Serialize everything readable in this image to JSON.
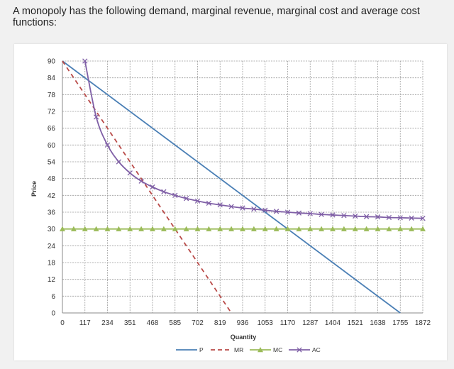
{
  "question_text": "A monopoly has the following demand, marginal revenue, marginal cost and average cost functions:",
  "chart_data": {
    "type": "line",
    "title": "",
    "xlabel": "Quantity",
    "ylabel": "Price",
    "xlim": [
      0,
      1872
    ],
    "ylim": [
      0,
      90
    ],
    "x_ticks": [
      0,
      117,
      234,
      351,
      468,
      585,
      702,
      819,
      936,
      1053,
      1170,
      1287,
      1404,
      1521,
      1638,
      1755,
      1872
    ],
    "y_ticks": [
      0,
      6,
      12,
      18,
      24,
      30,
      36,
      42,
      48,
      54,
      60,
      66,
      72,
      78,
      84,
      90
    ],
    "grid": true,
    "legend_position": "bottom",
    "series": [
      {
        "name": "P",
        "color": "#4a7fb5",
        "dash": "solid",
        "marker": "none",
        "points": [
          [
            0,
            90
          ],
          [
            1755,
            0
          ]
        ]
      },
      {
        "name": "MR",
        "color": "#b94a48",
        "dash": "dashed",
        "marker": "none",
        "points": [
          [
            0,
            90
          ],
          [
            877.5,
            0
          ]
        ]
      },
      {
        "name": "MC",
        "color": "#9bbb59",
        "dash": "solid",
        "marker": "triangle",
        "points": [
          [
            0,
            30
          ],
          [
            58.5,
            30
          ],
          [
            117,
            30
          ],
          [
            175.5,
            30
          ],
          [
            234,
            30
          ],
          [
            292.5,
            30
          ],
          [
            351,
            30
          ],
          [
            409.5,
            30
          ],
          [
            468,
            30
          ],
          [
            526.5,
            30
          ],
          [
            585,
            30
          ],
          [
            643.5,
            30
          ],
          [
            702,
            30
          ],
          [
            760.5,
            30
          ],
          [
            819,
            30
          ],
          [
            877.5,
            30
          ],
          [
            936,
            30
          ],
          [
            994.5,
            30
          ],
          [
            1053,
            30
          ],
          [
            1111.5,
            30
          ],
          [
            1170,
            30
          ],
          [
            1228.5,
            30
          ],
          [
            1287,
            30
          ],
          [
            1345.5,
            30
          ],
          [
            1404,
            30
          ],
          [
            1462.5,
            30
          ],
          [
            1521,
            30
          ],
          [
            1579.5,
            30
          ],
          [
            1638,
            30
          ],
          [
            1696.5,
            30
          ],
          [
            1755,
            30
          ],
          [
            1813.5,
            30
          ],
          [
            1872,
            30
          ]
        ]
      },
      {
        "name": "AC",
        "color": "#7f5fa6",
        "dash": "solid",
        "marker": "x",
        "points": [
          [
            117,
            90
          ],
          [
            175.5,
            70
          ],
          [
            234,
            60
          ],
          [
            292.5,
            54
          ],
          [
            351,
            50
          ],
          [
            409.5,
            47.1
          ],
          [
            468,
            45
          ],
          [
            526.5,
            43.3
          ],
          [
            585,
            42
          ],
          [
            643.5,
            40.9
          ],
          [
            702,
            40
          ],
          [
            760.5,
            39.2
          ],
          [
            819,
            38.6
          ],
          [
            877.5,
            38
          ],
          [
            936,
            37.5
          ],
          [
            994.5,
            37.1
          ],
          [
            1053,
            36.7
          ],
          [
            1111.5,
            36.3
          ],
          [
            1170,
            36
          ],
          [
            1228.5,
            35.7
          ],
          [
            1287,
            35.5
          ],
          [
            1345.5,
            35.2
          ],
          [
            1404,
            35
          ],
          [
            1462.5,
            34.8
          ],
          [
            1521,
            34.6
          ],
          [
            1579.5,
            34.4
          ],
          [
            1638,
            34.3
          ],
          [
            1696.5,
            34.1
          ],
          [
            1755,
            34
          ],
          [
            1813.5,
            33.9
          ],
          [
            1872,
            33.8
          ]
        ]
      }
    ]
  }
}
